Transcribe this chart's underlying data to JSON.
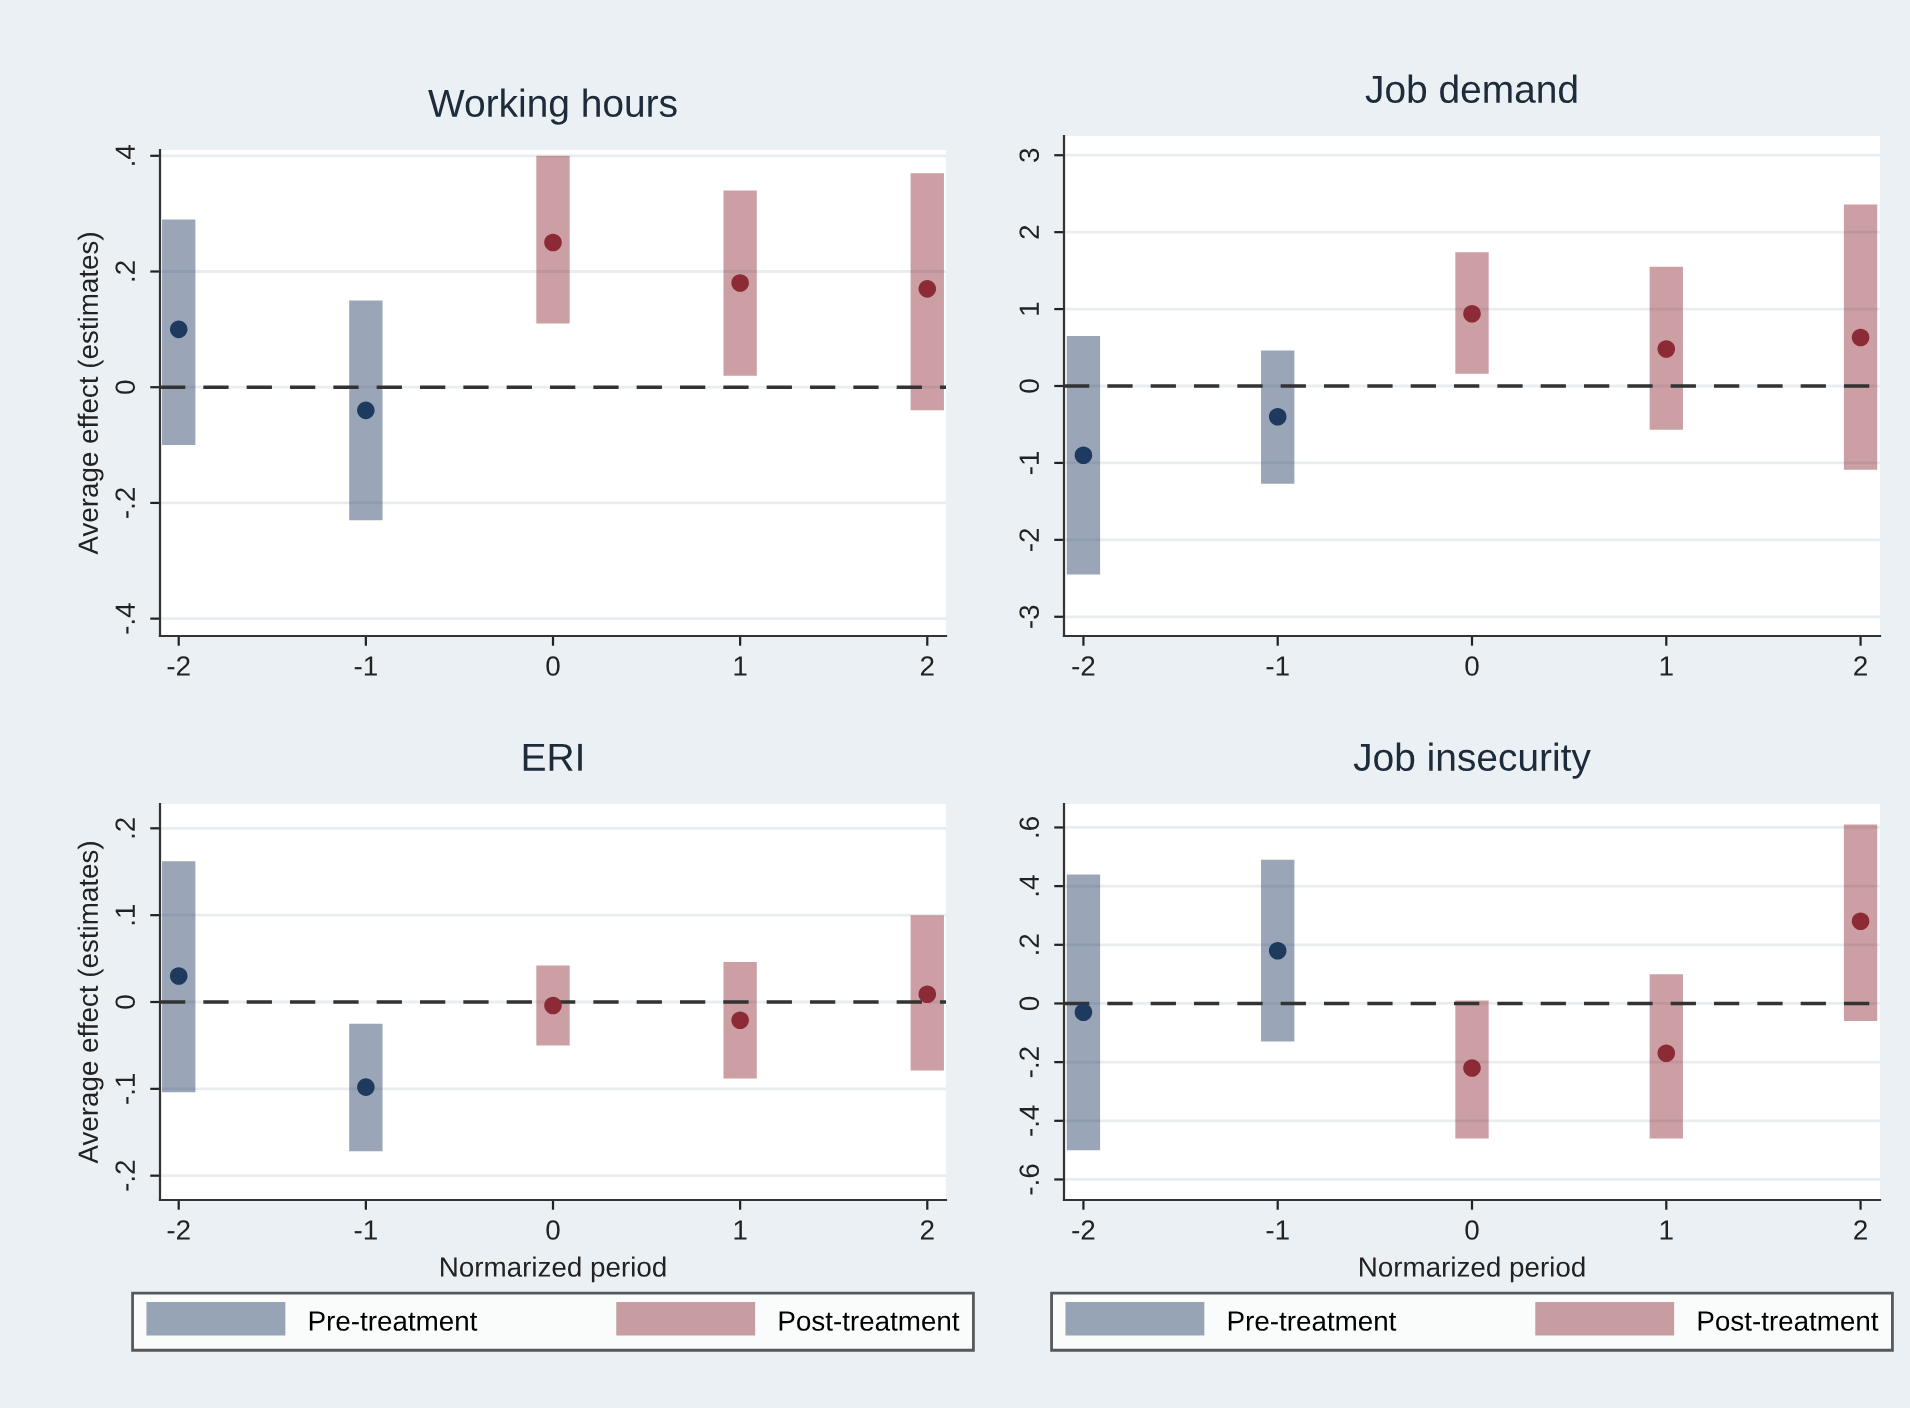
{
  "chart_data": [
    {
      "type": "scatter",
      "title": "Working hours",
      "ylabel": "Average effect (estimates)",
      "xlim": [
        -2.1,
        2.1
      ],
      "xticks": [
        -2,
        -1,
        0,
        1,
        2
      ],
      "ylim": [
        -0.43,
        0.41
      ],
      "yticks": [
        {
          "value": -0.4,
          "label": "-.4"
        },
        {
          "value": -0.2,
          "label": "-.2"
        },
        0,
        {
          "value": 0.2,
          "label": ".2"
        },
        {
          "value": 0.4,
          "label": ".4"
        }
      ],
      "grid": "y",
      "marker": "circle",
      "ref_lines": [
        {
          "axis": "y",
          "value": 0,
          "line_style": "dashed",
          "color": "#333333"
        }
      ],
      "series": [
        {
          "color": "#1f3a5f",
          "x": [
            -2,
            -1
          ],
          "values": [
            0.1,
            -0.04
          ],
          "errors": [
            [
              -0.1,
              0.29
            ],
            [
              -0.23,
              0.15
            ]
          ]
        },
        {
          "color": "#8c2a35",
          "x": [
            0,
            1,
            2
          ],
          "values": [
            0.25,
            0.18,
            0.17
          ],
          "errors": [
            [
              0.11,
              0.4
            ],
            [
              0.02,
              0.34
            ],
            [
              -0.04,
              0.37
            ]
          ]
        }
      ]
    },
    {
      "type": "scatter",
      "title": "Job demand",
      "xlim": [
        -2.1,
        2.1
      ],
      "xticks": [
        -2,
        -1,
        0,
        1,
        2
      ],
      "ylim": [
        -3.25,
        3.25
      ],
      "yticks": [
        -3,
        -2,
        -1,
        0,
        1,
        2,
        3
      ],
      "grid": "y",
      "marker": "circle",
      "ref_lines": [
        {
          "axis": "y",
          "value": 0,
          "line_style": "dashed",
          "color": "#333333"
        }
      ],
      "series": [
        {
          "color": "#1f3a5f",
          "x": [
            -2,
            -1
          ],
          "values": [
            -0.9,
            -0.4
          ],
          "errors": [
            [
              -2.45,
              0.65
            ],
            [
              -1.27,
              0.46
            ]
          ]
        },
        {
          "color": "#8c2a35",
          "x": [
            0,
            1,
            2
          ],
          "values": [
            0.94,
            0.48,
            0.63
          ],
          "errors": [
            [
              0.16,
              1.74
            ],
            [
              -0.57,
              1.55
            ],
            [
              -1.09,
              2.36
            ]
          ]
        }
      ]
    },
    {
      "type": "scatter",
      "title": "ERI",
      "xlabel": "Normarized period",
      "ylabel": "Average effect (estimates)",
      "xlim": [
        -2.1,
        2.1
      ],
      "xticks": [
        -2,
        -1,
        0,
        1,
        2
      ],
      "ylim": [
        -0.228,
        0.228
      ],
      "yticks": [
        {
          "value": -0.2,
          "label": "-.2"
        },
        {
          "value": -0.1,
          "label": "-.1"
        },
        0,
        {
          "value": 0.1,
          "label": ".1"
        },
        {
          "value": 0.2,
          "label": ".2"
        }
      ],
      "grid": "y",
      "marker": "circle",
      "legend": "bottom",
      "ref_lines": [
        {
          "axis": "y",
          "value": 0,
          "line_style": "dashed",
          "color": "#333333"
        }
      ],
      "series": [
        {
          "name": "Pre-treatment",
          "color": "#1f3a5f",
          "x": [
            -2,
            -1
          ],
          "values": [
            0.03,
            -0.098
          ],
          "errors": [
            [
              -0.104,
              0.162
            ],
            [
              -0.172,
              -0.025
            ]
          ]
        },
        {
          "name": "Post-treatment",
          "color": "#8c2a35",
          "x": [
            0,
            1,
            2
          ],
          "values": [
            -0.004,
            -0.021,
            0.009
          ],
          "errors": [
            [
              -0.05,
              0.042
            ],
            [
              -0.088,
              0.046
            ],
            [
              -0.079,
              0.1
            ]
          ]
        }
      ]
    },
    {
      "type": "scatter",
      "title": "Job insecurity",
      "xlabel": "Normarized period",
      "xlim": [
        -2.1,
        2.1
      ],
      "xticks": [
        -2,
        -1,
        0,
        1,
        2
      ],
      "ylim": [
        -0.67,
        0.68
      ],
      "yticks": [
        {
          "value": -0.6,
          "label": "-.6"
        },
        {
          "value": -0.4,
          "label": "-.4"
        },
        {
          "value": -0.2,
          "label": "-.2"
        },
        0,
        {
          "value": 0.2,
          "label": ".2"
        },
        {
          "value": 0.4,
          "label": ".4"
        },
        {
          "value": 0.6,
          "label": ".6"
        }
      ],
      "grid": "y",
      "marker": "circle",
      "legend": "bottom",
      "ref_lines": [
        {
          "axis": "y",
          "value": 0,
          "line_style": "dashed",
          "color": "#333333"
        }
      ],
      "series": [
        {
          "name": "Pre-treatment",
          "color": "#1f3a5f",
          "x": [
            -2,
            -1
          ],
          "values": [
            -0.03,
            0.18
          ],
          "errors": [
            [
              -0.5,
              0.44
            ],
            [
              -0.13,
              0.49
            ]
          ]
        },
        {
          "name": "Post-treatment",
          "color": "#8c2a35",
          "x": [
            0,
            1,
            2
          ],
          "values": [
            -0.22,
            -0.17,
            0.28
          ],
          "errors": [
            [
              -0.46,
              0.01
            ],
            [
              -0.46,
              0.1
            ],
            [
              -0.06,
              0.61
            ]
          ]
        }
      ]
    }
  ]
}
